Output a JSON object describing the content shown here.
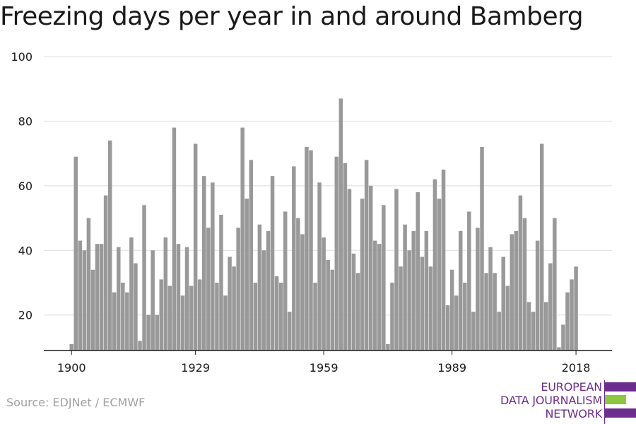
{
  "title": "Freezing days per year in and around Bamberg",
  "source": "Source: EDJNet / ECMWF",
  "logo": {
    "lines": [
      "EUROPEAN",
      "DATA JOURNALISM",
      "NETWORK"
    ],
    "colors": {
      "purple": "#6b2e8f",
      "green": "#8dc63f"
    }
  },
  "colors": {
    "bar": "#999999",
    "grid": "#dddddd",
    "axis": "#1a1a1a",
    "text": "#1a1a1a"
  },
  "chart_data": {
    "type": "bar",
    "x_start": 1900,
    "x_end": 2020,
    "xticks": [
      1900,
      1929,
      1959,
      1989,
      2018
    ],
    "yticks": [
      20,
      40,
      60,
      80,
      100
    ],
    "ylim": [
      9,
      100
    ],
    "grid": true,
    "legend": "none",
    "values": [
      11,
      69,
      43,
      40,
      50,
      34,
      42,
      42,
      57,
      74,
      27,
      41,
      30,
      27,
      44,
      36,
      12,
      54,
      20,
      40,
      20,
      31,
      44,
      29,
      78,
      42,
      26,
      41,
      29,
      73,
      31,
      63,
      47,
      61,
      30,
      51,
      26,
      38,
      35,
      47,
      78,
      56,
      68,
      30,
      48,
      40,
      46,
      63,
      32,
      30,
      52,
      21,
      66,
      50,
      45,
      72,
      71,
      30,
      61,
      44,
      37,
      34,
      69,
      87,
      67,
      59,
      39,
      33,
      56,
      68,
      60,
      43,
      42,
      54,
      11,
      30,
      59,
      35,
      48,
      40,
      46,
      58,
      38,
      46,
      35,
      62,
      56,
      65,
      23,
      34,
      26,
      46,
      30,
      52,
      21,
      47,
      72,
      33,
      41,
      33,
      21,
      38,
      29,
      45,
      46,
      57,
      50,
      24,
      21,
      43,
      73,
      24,
      36,
      50,
      10,
      17,
      27,
      31,
      35
    ]
  }
}
